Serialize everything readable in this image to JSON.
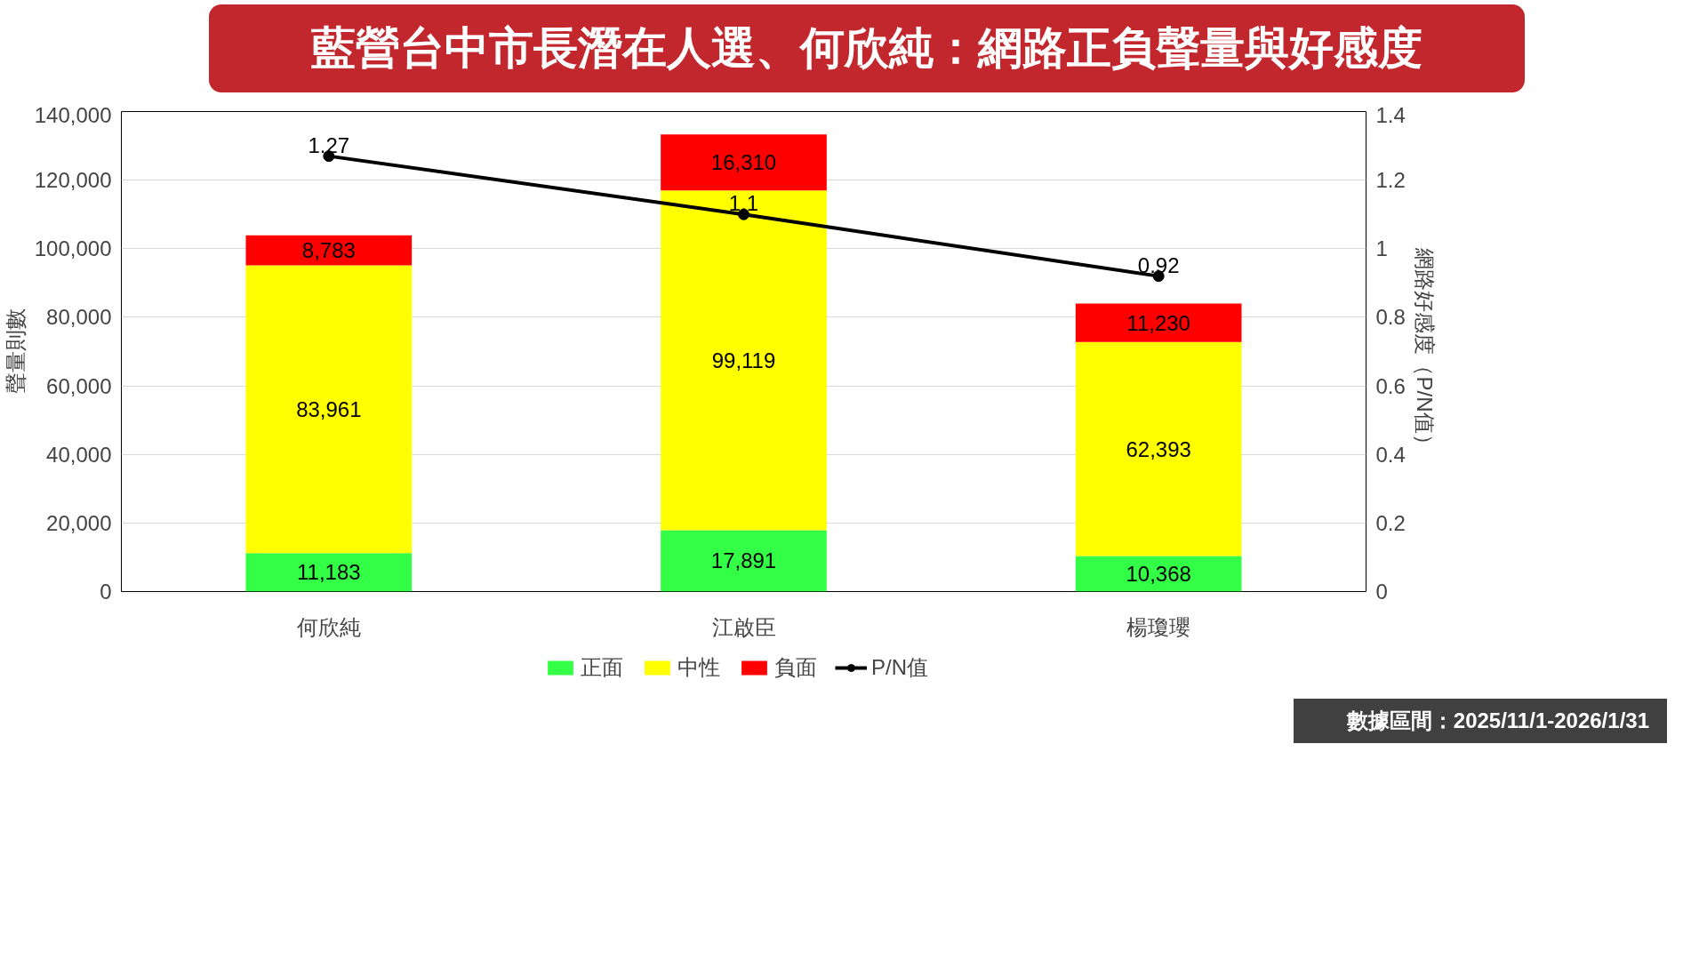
{
  "chart_data": {
    "type": "bar",
    "title": "藍營台中市長潛在人選、何欣純：網路正負聲量與好感度",
    "categories": [
      "何欣純",
      "江啟臣",
      "楊瓊瓔"
    ],
    "stacked": true,
    "series": [
      {
        "name": "正面",
        "color": "#33ff47",
        "values": [
          11183,
          17891,
          10368
        ],
        "value_labels": [
          "11,183",
          "17,891",
          "10,368"
        ]
      },
      {
        "name": "中性",
        "color": "#ffff00",
        "values": [
          83961,
          99119,
          62393
        ],
        "value_labels": [
          "83,961",
          "99,119",
          "62,393"
        ]
      },
      {
        "name": "負面",
        "color": "#ff0000",
        "values": [
          8783,
          16310,
          11230
        ],
        "value_labels": [
          "8,783",
          "16,310",
          "11,230"
        ]
      },
      {
        "name": "P/N值",
        "color": "#000000",
        "type": "line",
        "axis": "y2",
        "marker": "circle",
        "values": [
          1.27,
          1.1,
          0.92
        ]
      }
    ],
    "data_labels": true,
    "ylabel": "聲量則數",
    "y2label": "網路好感度（P/N值）",
    "ylim": [
      0,
      140000
    ],
    "yticks": [
      {
        "value": 0,
        "label": "0"
      },
      {
        "value": 20000,
        "label": "20,000"
      },
      {
        "value": 40000,
        "label": "40,000"
      },
      {
        "value": 60000,
        "label": "60,000"
      },
      {
        "value": 80000,
        "label": "80,000"
      },
      {
        "value": 100000,
        "label": "100,000"
      },
      {
        "value": 120000,
        "label": "120,000"
      },
      {
        "value": 140000,
        "label": "140,000"
      }
    ],
    "y2lim": [
      0,
      1.4
    ],
    "y2ticks": [
      0,
      0.2,
      0.4,
      0.6,
      0.8,
      1,
      1.2,
      1.4
    ],
    "grid": "y",
    "legend": "bottom",
    "annotations": [
      "數據區間：2025/11/1-2026/1/31"
    ]
  }
}
